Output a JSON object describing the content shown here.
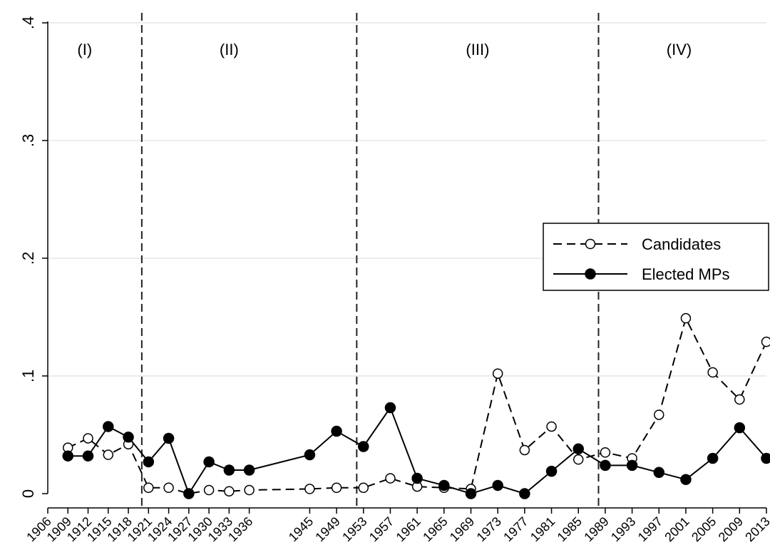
{
  "chart_data": {
    "type": "line",
    "title": "",
    "xlabel": "",
    "ylabel": "",
    "ylim": [
      0,
      0.4
    ],
    "yticks": [
      {
        "value": 0,
        "label": "0"
      },
      {
        "value": 0.1,
        "label": ".1"
      },
      {
        "value": 0.2,
        "label": ".2"
      },
      {
        "value": 0.3,
        "label": ".3"
      },
      {
        "value": 0.4,
        "label": ".4"
      }
    ],
    "xlim": [
      1906,
      2013
    ],
    "xticks": [
      "1906",
      "1909",
      "1912",
      "1915",
      "1918",
      "1921",
      "1924",
      "1927",
      "1930",
      "1933",
      "1936",
      "1945",
      "1949",
      "1953",
      "1957",
      "1961",
      "1965",
      "1969",
      "1973",
      "1977",
      "1981",
      "1985",
      "1989",
      "1993",
      "1997",
      "2001",
      "2005",
      "2009",
      "2013"
    ],
    "grid": true,
    "period_dividers": [
      1920,
      1952,
      1988
    ],
    "periods": [
      {
        "label": "(I)",
        "center": 1911.5
      },
      {
        "label": "(II)",
        "center": 1933
      },
      {
        "label": "(III)",
        "center": 1970
      },
      {
        "label": "(IV)",
        "center": 2000
      }
    ],
    "legend_position": "right",
    "series": [
      {
        "name": "Candidates",
        "style": "dashed-hollow",
        "x": [
          1909,
          1912,
          1915,
          1918,
          1921,
          1924,
          1927,
          1930,
          1933,
          1936,
          1945,
          1949,
          1953,
          1957,
          1961,
          1965,
          1969,
          1973,
          1977,
          1981,
          1985,
          1989,
          1993,
          1997,
          2001,
          2005,
          2009,
          2013
        ],
        "y": [
          0.039,
          0.047,
          0.033,
          0.042,
          0.005,
          0.005,
          0.0,
          0.003,
          0.002,
          0.003,
          0.004,
          0.005,
          0.005,
          0.013,
          0.006,
          0.005,
          0.004,
          0.102,
          0.037,
          0.057,
          0.029,
          0.035,
          0.03,
          0.067,
          0.149,
          0.103,
          0.08,
          0.129
        ]
      },
      {
        "name": "Elected MPs",
        "style": "solid-filled",
        "x": [
          1909,
          1912,
          1915,
          1918,
          1921,
          1924,
          1927,
          1930,
          1933,
          1936,
          1945,
          1949,
          1953,
          1957,
          1961,
          1965,
          1969,
          1973,
          1977,
          1981,
          1985,
          1989,
          1993,
          1997,
          2001,
          2005,
          2009,
          2013
        ],
        "y": [
          0.032,
          0.032,
          0.057,
          0.048,
          0.027,
          0.047,
          0.0,
          0.027,
          0.02,
          0.02,
          0.033,
          0.053,
          0.04,
          0.073,
          0.013,
          0.007,
          0.0,
          0.007,
          0.0,
          0.019,
          0.038,
          0.024,
          0.024,
          0.018,
          0.012,
          0.03,
          0.056,
          0.03
        ]
      }
    ]
  }
}
